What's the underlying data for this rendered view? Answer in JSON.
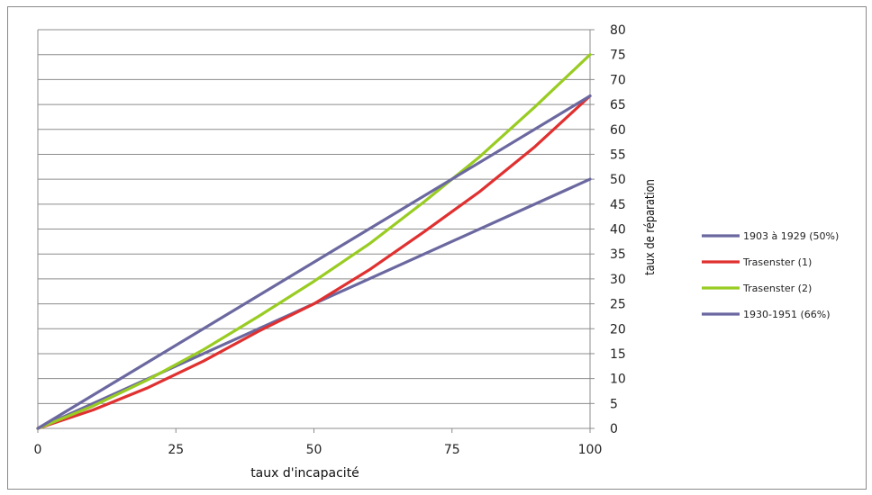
{
  "chart_data": {
    "type": "line",
    "title": "",
    "xlabel": "taux d'incapacité",
    "ylabel": "taux de réparation",
    "xlim": [
      0,
      100
    ],
    "ylim": [
      0,
      80
    ],
    "xticks": [
      0,
      25,
      50,
      75,
      100
    ],
    "yticks": [
      0,
      5,
      10,
      15,
      20,
      25,
      30,
      35,
      40,
      45,
      50,
      55,
      60,
      65,
      70,
      75,
      80
    ],
    "grid": "horizontal",
    "y_axis_side": "right",
    "legend_position": "right",
    "series": [
      {
        "name": "1903 à 1929 (50%)",
        "color": "#6b68a0",
        "x": [
          0,
          100
        ],
        "y": [
          0,
          50
        ]
      },
      {
        "name": "Trasenster (1)",
        "color": "#e03030",
        "x": [
          0,
          10,
          20,
          30,
          40,
          50,
          60,
          70,
          80,
          90,
          100
        ],
        "y": [
          0,
          3.7,
          8.2,
          13.5,
          19.5,
          25,
          31.8,
          39.5,
          47.5,
          56.5,
          66.7
        ]
      },
      {
        "name": "Trasenster (2)",
        "color": "#99cc22",
        "x": [
          0,
          10,
          20,
          30,
          40,
          50,
          60,
          70,
          80,
          90,
          100
        ],
        "y": [
          0,
          4.5,
          9.8,
          15.8,
          22.5,
          29.5,
          37,
          45.5,
          54.5,
          64.5,
          75
        ]
      },
      {
        "name": "1930-1951 (66%)",
        "color": "#6b68a0",
        "x": [
          0,
          100
        ],
        "y": [
          0,
          66.7
        ]
      }
    ]
  }
}
